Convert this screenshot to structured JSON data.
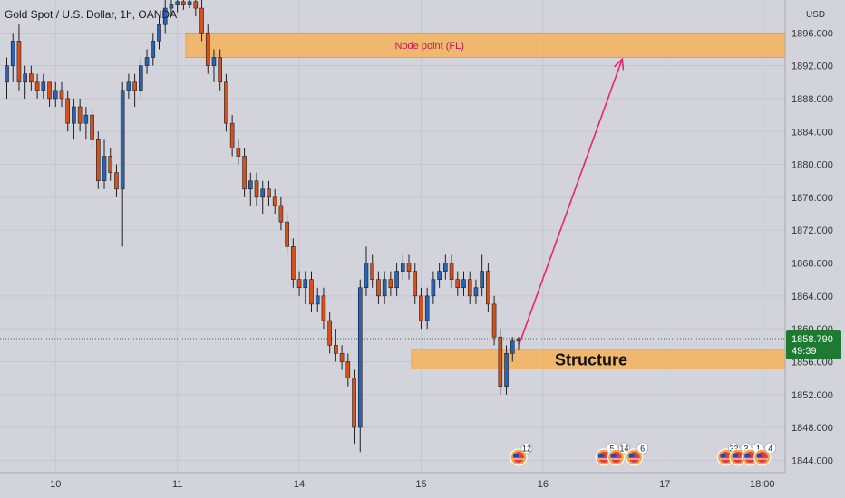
{
  "symbol_title": "Gold Spot / U.S. Dollar, 1h, OANDA",
  "currency": "USD",
  "colors": {
    "background": "#d3d4db",
    "up": "#2a63b4",
    "down": "#d5511c",
    "wick": "#1f1f1f",
    "zone_fill": "#f3b35a",
    "arrow": "#e8246e",
    "price_badge": "#1d7a31",
    "zone_label": "#c2185b"
  },
  "price_badge": {
    "price": "1858.790",
    "countdown": "49:39"
  },
  "zones": [
    {
      "label": "Node point (FL)",
      "top": 1896.0,
      "bottom": 1893.0
    },
    {
      "label": "Structure",
      "top": 1857.5,
      "bottom": 1855.1
    }
  ],
  "arrow": {
    "from": {
      "bar": 84,
      "price": 1857.9
    },
    "to": {
      "bar": 101,
      "price": 1892.8
    }
  },
  "event_markers": [
    {
      "bar": 84,
      "count": "12"
    },
    {
      "bar": 98,
      "count": "5"
    },
    {
      "bar": 100,
      "count": "14"
    },
    {
      "bar": 103,
      "count": "6"
    },
    {
      "bar": 118,
      "count": "33"
    },
    {
      "bar": 120,
      "count": "3"
    },
    {
      "bar": 122,
      "count": "1"
    },
    {
      "bar": 124,
      "count": "4"
    }
  ],
  "chart_data": {
    "type": "candlestick",
    "title": "Gold Spot / U.S. Dollar, 1h, OANDA",
    "y_unit": "USD",
    "ylim": [
      1842.5,
      1900.0
    ],
    "y_ticks": [
      "1896.000",
      "1892.000",
      "1888.000",
      "1884.000",
      "1880.000",
      "1876.000",
      "1872.000",
      "1868.000",
      "1864.000",
      "1860.000",
      "1856.000",
      "1852.000",
      "1848.000",
      "1844.000"
    ],
    "x_ticks": [
      {
        "label": "10",
        "bar": 8
      },
      {
        "label": "11",
        "bar": 28
      },
      {
        "label": "14",
        "bar": 48
      },
      {
        "label": "15",
        "bar": 68
      },
      {
        "label": "16",
        "bar": 88
      },
      {
        "label": "17",
        "bar": 108
      },
      {
        "label": "18:00",
        "bar": 124
      }
    ],
    "candles": [
      [
        1890,
        1893,
        1888,
        1892
      ],
      [
        1892,
        1896,
        1890,
        1895
      ],
      [
        1895,
        1897,
        1889,
        1890
      ],
      [
        1890,
        1892,
        1888,
        1891
      ],
      [
        1891,
        1892,
        1889,
        1890
      ],
      [
        1890,
        1891,
        1888,
        1889
      ],
      [
        1889,
        1891,
        1888,
        1890
      ],
      [
        1890,
        1890,
        1887,
        1888
      ],
      [
        1888,
        1890,
        1887,
        1889
      ],
      [
        1889,
        1890,
        1887,
        1888
      ],
      [
        1888,
        1889,
        1884,
        1885
      ],
      [
        1885,
        1888,
        1883,
        1887
      ],
      [
        1887,
        1888,
        1884,
        1885
      ],
      [
        1885,
        1887,
        1883,
        1886
      ],
      [
        1886,
        1887,
        1882,
        1883
      ],
      [
        1883,
        1884,
        1877,
        1878
      ],
      [
        1878,
        1883,
        1877,
        1881
      ],
      [
        1881,
        1882,
        1878,
        1879
      ],
      [
        1879,
        1880,
        1876,
        1877
      ],
      [
        1877,
        1890,
        1870,
        1889
      ],
      [
        1889,
        1891,
        1888,
        1890
      ],
      [
        1890,
        1891,
        1887,
        1889
      ],
      [
        1889,
        1893,
        1888,
        1892
      ],
      [
        1892,
        1894,
        1891,
        1893
      ],
      [
        1893,
        1896,
        1892,
        1895
      ],
      [
        1895,
        1898,
        1894,
        1897
      ],
      [
        1897,
        1900,
        1896,
        1899
      ],
      [
        1899,
        1900,
        1898,
        1899.5
      ],
      [
        1899.5,
        1900,
        1898.5,
        1899.8
      ],
      [
        1899.8,
        1900,
        1898.8,
        1899.5
      ],
      [
        1899.5,
        1900,
        1899,
        1899.8
      ],
      [
        1899.8,
        1900,
        1898,
        1899
      ],
      [
        1899,
        1900,
        1895,
        1896
      ],
      [
        1896,
        1897,
        1891,
        1892
      ],
      [
        1892,
        1894,
        1890,
        1893
      ],
      [
        1893,
        1894,
        1889,
        1890
      ],
      [
        1890,
        1891,
        1884,
        1885
      ],
      [
        1885,
        1886,
        1881,
        1882
      ],
      [
        1882,
        1883,
        1880,
        1881
      ],
      [
        1881,
        1882,
        1876,
        1877
      ],
      [
        1877,
        1879,
        1875,
        1878
      ],
      [
        1878,
        1879,
        1875,
        1876
      ],
      [
        1876,
        1878,
        1874,
        1877
      ],
      [
        1877,
        1878,
        1875,
        1876
      ],
      [
        1876,
        1877,
        1874,
        1875
      ],
      [
        1875,
        1876,
        1872,
        1873
      ],
      [
        1873,
        1874,
        1869,
        1870
      ],
      [
        1870,
        1871,
        1865,
        1866
      ],
      [
        1866,
        1867,
        1864,
        1865
      ],
      [
        1865,
        1867,
        1863,
        1866
      ],
      [
        1866,
        1867,
        1862,
        1863
      ],
      [
        1863,
        1865,
        1862,
        1864
      ],
      [
        1864,
        1865,
        1860,
        1861
      ],
      [
        1861,
        1862,
        1857,
        1858
      ],
      [
        1858,
        1860,
        1856,
        1857
      ],
      [
        1857,
        1858,
        1855,
        1856
      ],
      [
        1856,
        1857,
        1853,
        1854
      ],
      [
        1854,
        1855,
        1846,
        1848
      ],
      [
        1848,
        1866,
        1845,
        1865
      ],
      [
        1865,
        1870,
        1864,
        1868
      ],
      [
        1868,
        1869,
        1865,
        1866
      ],
      [
        1866,
        1867,
        1863,
        1864
      ],
      [
        1864,
        1867,
        1863,
        1866
      ],
      [
        1866,
        1867,
        1864,
        1865
      ],
      [
        1865,
        1868,
        1864,
        1867
      ],
      [
        1867,
        1869,
        1866,
        1868
      ],
      [
        1868,
        1869,
        1866,
        1867
      ],
      [
        1867,
        1868,
        1863,
        1864
      ],
      [
        1864,
        1865,
        1860,
        1861
      ],
      [
        1861,
        1865,
        1860,
        1864
      ],
      [
        1864,
        1867,
        1863,
        1866
      ],
      [
        1866,
        1868,
        1865,
        1867
      ],
      [
        1867,
        1869,
        1866,
        1868
      ],
      [
        1868,
        1869,
        1865,
        1866
      ],
      [
        1866,
        1867,
        1864,
        1865
      ],
      [
        1865,
        1867,
        1864,
        1866
      ],
      [
        1866,
        1867,
        1863,
        1864
      ],
      [
        1864,
        1866,
        1863,
        1865
      ],
      [
        1865,
        1869,
        1864,
        1867
      ],
      [
        1867,
        1868,
        1862,
        1863
      ],
      [
        1863,
        1864,
        1858,
        1859
      ],
      [
        1859,
        1860,
        1852,
        1853
      ],
      [
        1853,
        1858,
        1852,
        1857
      ],
      [
        1857,
        1859,
        1856,
        1858.5
      ],
      [
        1858.5,
        1859,
        1857.5,
        1858.8
      ]
    ]
  }
}
